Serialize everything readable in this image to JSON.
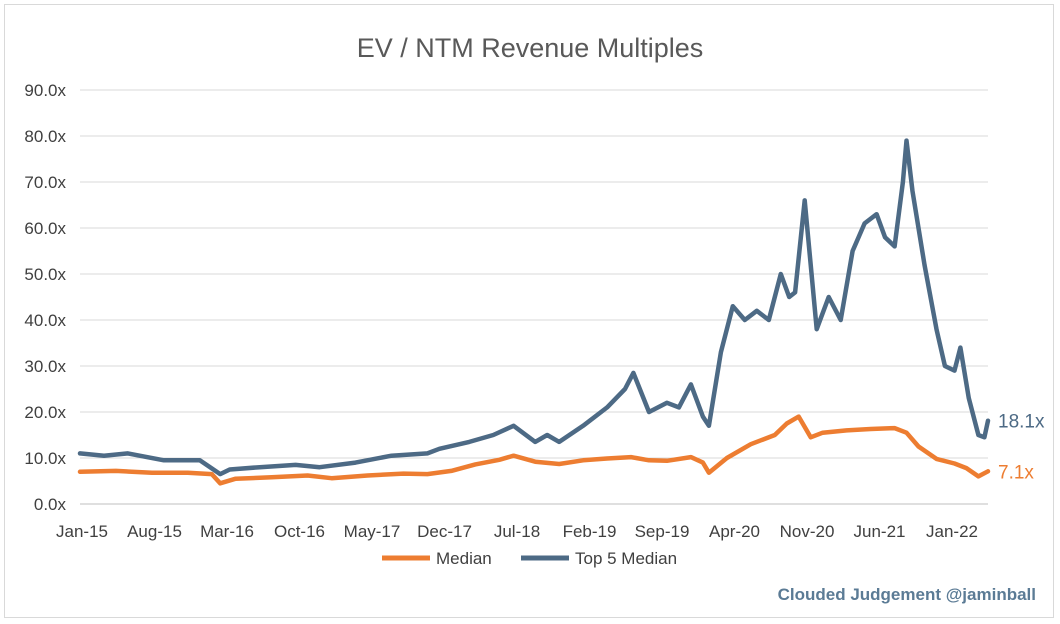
{
  "colors": {
    "median": "#ed7d31",
    "top5": "#4d6a85",
    "grid": "#d9d9d9",
    "axis": "#bfbfbf",
    "credit": "#5b7b95"
  },
  "credit": "Clouded Judgement @jaminball",
  "chart_data": {
    "type": "line",
    "title": "EV / NTM Revenue Multiples",
    "xlabel": "",
    "ylabel": "",
    "ylim": [
      0,
      90
    ],
    "xlim": [
      2015.0,
      2022.58
    ],
    "grid": "horizontal",
    "legend": "bottom-center",
    "y_ticks": [
      "0.0x",
      "10.0x",
      "20.0x",
      "30.0x",
      "40.0x",
      "50.0x",
      "60.0x",
      "70.0x",
      "80.0x",
      "90.0x"
    ],
    "x_ticks": [
      "Jan-15",
      "Aug-15",
      "Mar-16",
      "Oct-16",
      "May-17",
      "Dec-17",
      "Jul-18",
      "Feb-19",
      "Sep-19",
      "Apr-20",
      "Nov-20",
      "Jun-21",
      "Jan-22"
    ],
    "series": [
      {
        "name": "Median",
        "end_label": "7.1x",
        "x": [
          2015.0,
          2015.3,
          2015.6,
          2015.9,
          2016.1,
          2016.17,
          2016.3,
          2016.6,
          2016.9,
          2017.1,
          2017.4,
          2017.7,
          2017.9,
          2018.1,
          2018.3,
          2018.5,
          2018.62,
          2018.8,
          2019.0,
          2019.2,
          2019.4,
          2019.6,
          2019.75,
          2019.9,
          2020.1,
          2020.2,
          2020.25,
          2020.4,
          2020.6,
          2020.8,
          2020.9,
          2021.0,
          2021.1,
          2021.2,
          2021.4,
          2021.6,
          2021.8,
          2021.9,
          2022.0,
          2022.15,
          2022.3,
          2022.4,
          2022.5,
          2022.58
        ],
        "values": [
          7.0,
          7.2,
          6.8,
          6.8,
          6.5,
          4.5,
          5.5,
          5.8,
          6.2,
          5.6,
          6.2,
          6.6,
          6.5,
          7.2,
          8.6,
          9.6,
          10.5,
          9.2,
          8.7,
          9.5,
          9.9,
          10.2,
          9.5,
          9.4,
          10.2,
          9.0,
          6.8,
          10.0,
          13.0,
          15.0,
          17.5,
          19.0,
          14.5,
          15.5,
          16.0,
          16.3,
          16.5,
          15.5,
          12.5,
          9.8,
          8.8,
          7.8,
          6.0,
          7.1
        ]
      },
      {
        "name": "Top 5 Median",
        "end_label": "18.1x",
        "x": [
          2015.0,
          2015.2,
          2015.4,
          2015.7,
          2016.0,
          2016.17,
          2016.25,
          2016.5,
          2016.8,
          2017.0,
          2017.3,
          2017.6,
          2017.9,
          2018.0,
          2018.25,
          2018.45,
          2018.62,
          2018.8,
          2018.9,
          2019.0,
          2019.2,
          2019.4,
          2019.55,
          2019.62,
          2019.75,
          2019.9,
          2020.0,
          2020.1,
          2020.2,
          2020.25,
          2020.35,
          2020.45,
          2020.55,
          2020.65,
          2020.75,
          2020.85,
          2020.92,
          2020.97,
          2021.05,
          2021.15,
          2021.25,
          2021.35,
          2021.45,
          2021.55,
          2021.65,
          2021.72,
          2021.8,
          2021.87,
          2021.9,
          2021.95,
          2022.05,
          2022.1,
          2022.15,
          2022.22,
          2022.3,
          2022.35,
          2022.42,
          2022.5,
          2022.55,
          2022.58
        ],
        "values": [
          11.0,
          10.5,
          11.0,
          9.5,
          9.5,
          6.5,
          7.5,
          8.0,
          8.5,
          8.0,
          9.0,
          10.5,
          11.0,
          12.0,
          13.5,
          15.0,
          17.0,
          13.5,
          15.0,
          13.5,
          17.0,
          21.0,
          25.0,
          28.5,
          20.0,
          22.0,
          21.0,
          26.0,
          19.0,
          17.0,
          33.0,
          43.0,
          40.0,
          42.0,
          40.0,
          50.0,
          45.0,
          46.0,
          66.0,
          38.0,
          45.0,
          40.0,
          55.0,
          61.0,
          63.0,
          58.0,
          56.0,
          70.0,
          79.0,
          68.0,
          52.0,
          45.0,
          38.0,
          30.0,
          29.0,
          34.0,
          23.0,
          15.0,
          14.5,
          18.1
        ]
      }
    ]
  }
}
